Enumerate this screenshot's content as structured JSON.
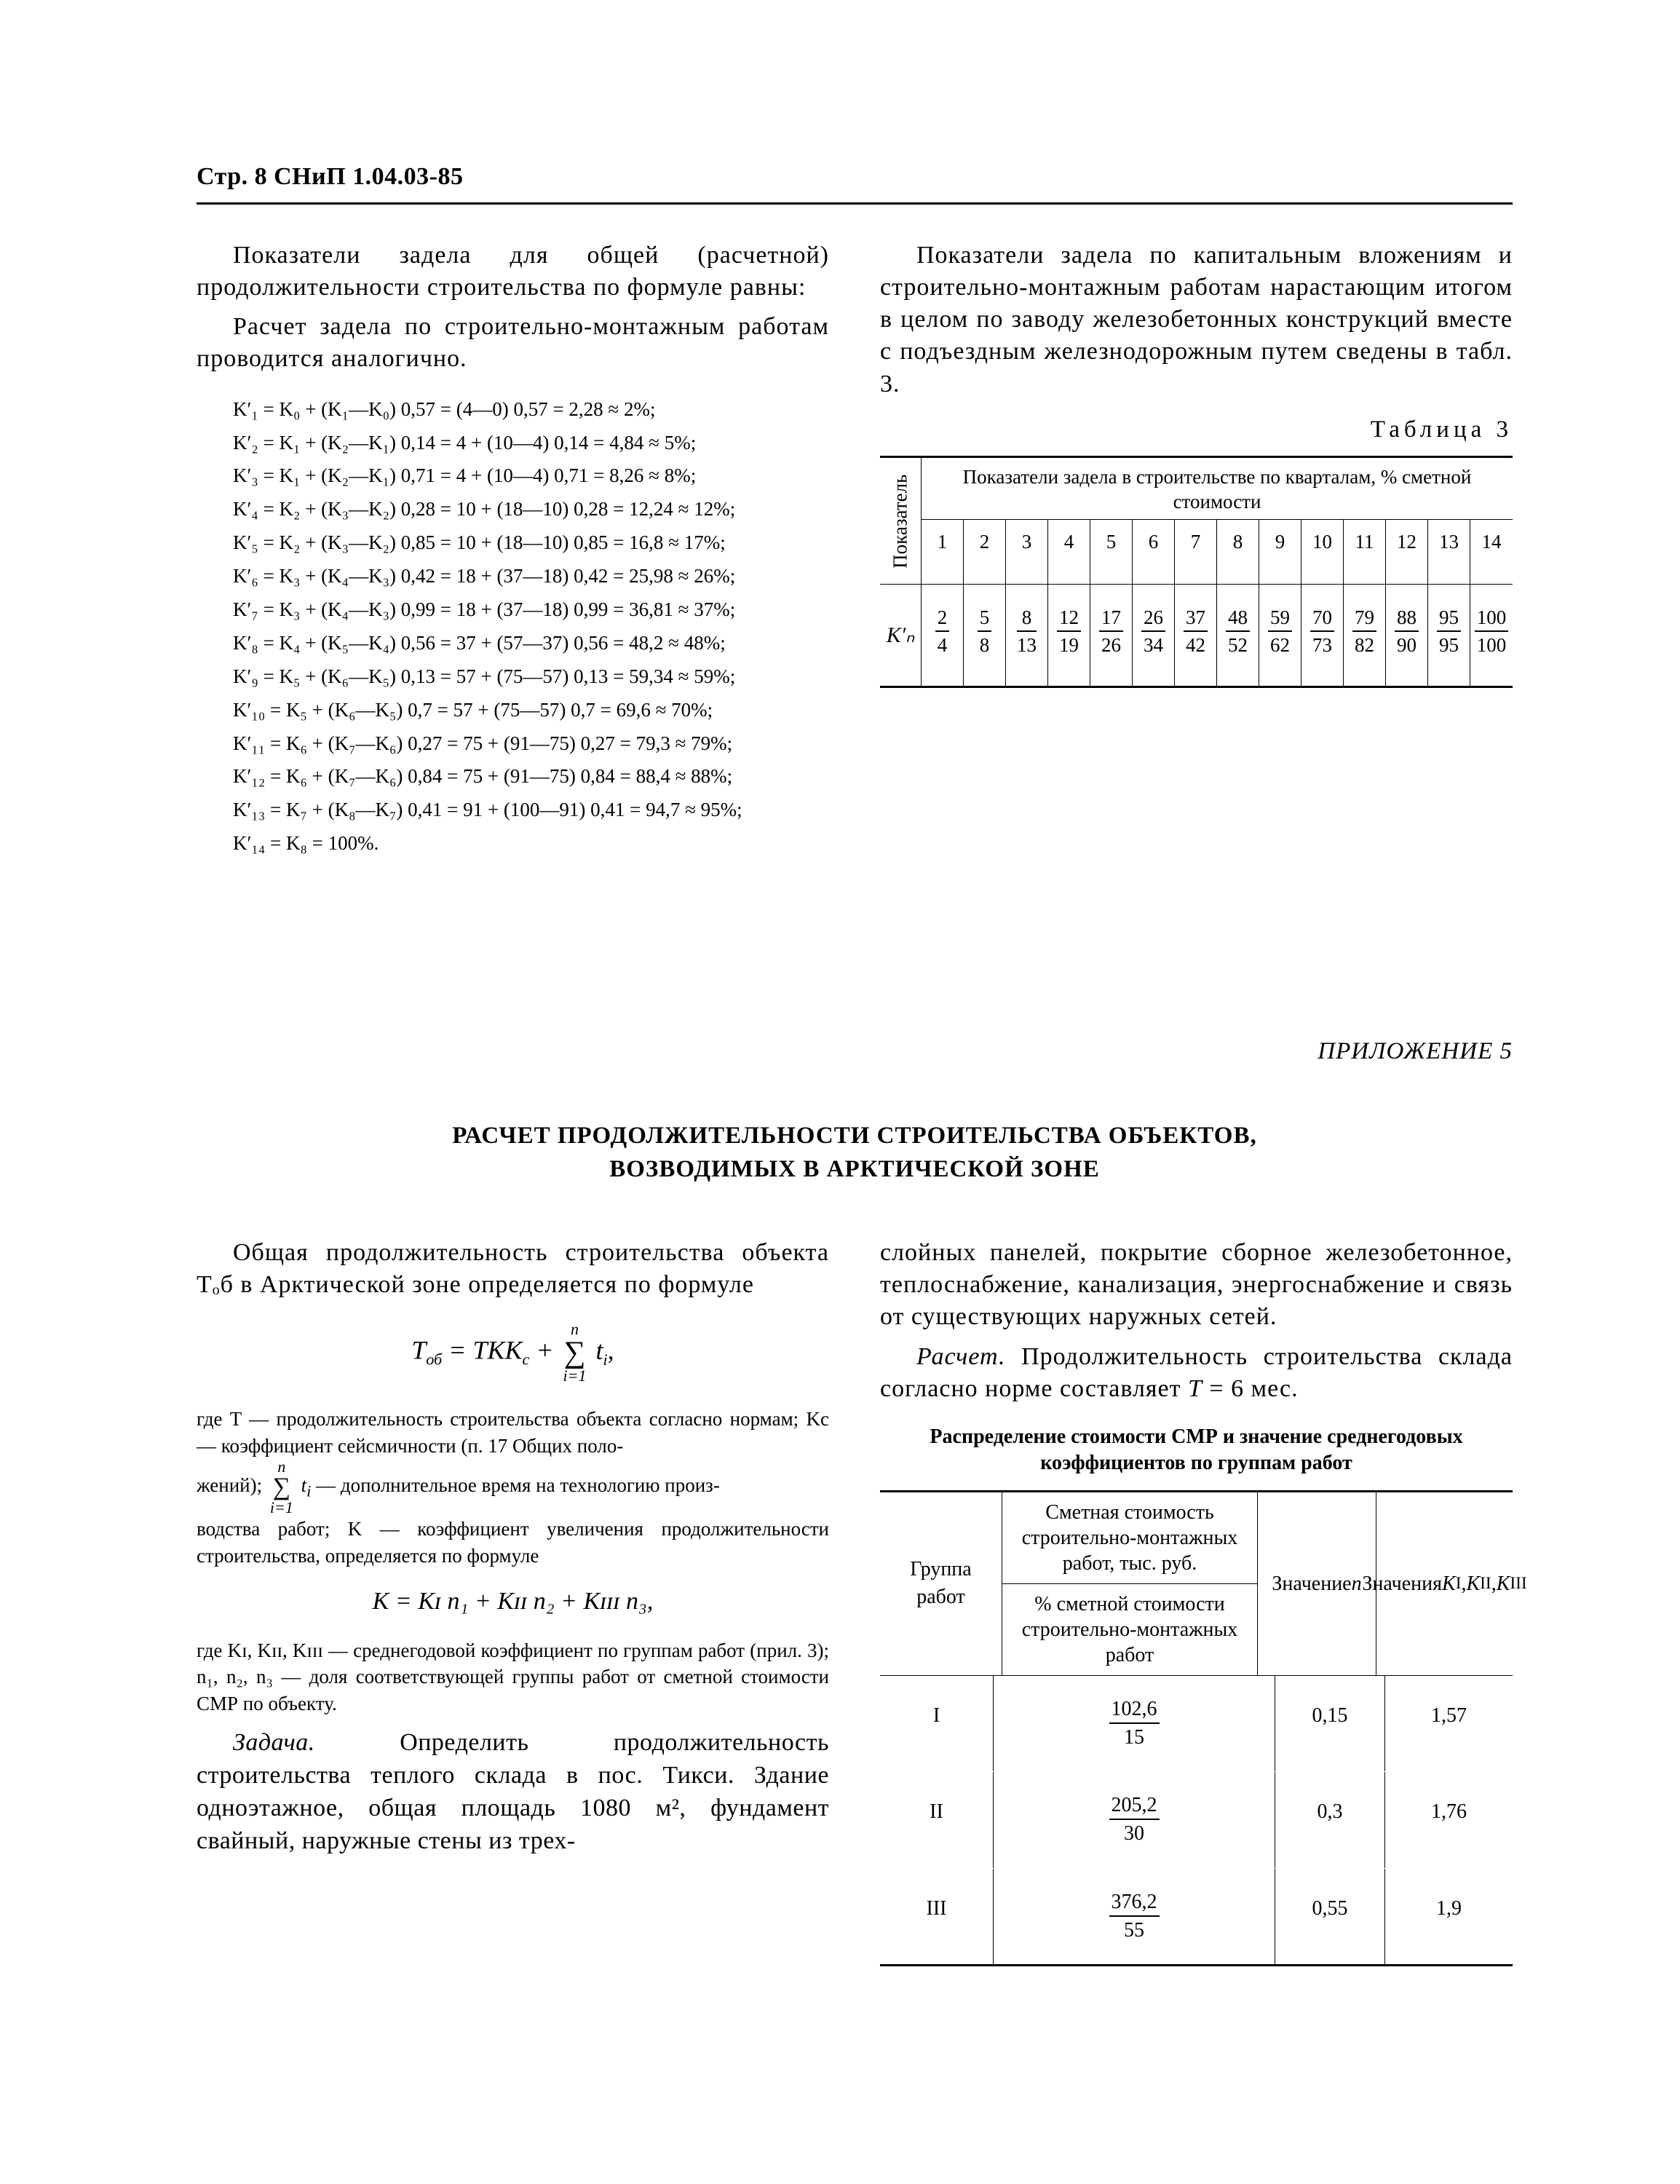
{
  "header": "Стр. 8 СНиП 1.04.03-85",
  "leftCol": {
    "p1": "Показатели задела для общей (расчетной) продолжительности строительства по формуле равны:",
    "p2": "Расчет задела по строительно-монтажным работам проводится аналогично.",
    "calc": [
      "K′₁ = K₀ + (K₁—K₀) 0,57 = (4—0) 0,57 = 2,28 ≈ 2%;",
      "K′₂ = K₁ + (K₂—K₁) 0,14 = 4 + (10—4) 0,14 = 4,84 ≈ 5%;",
      "K′₃ = K₁ + (K₂—K₁) 0,71 = 4 + (10—4) 0,71 = 8,26 ≈ 8%;",
      "K′₄ = K₂ + (K₃—K₂) 0,28 = 10 + (18—10) 0,28 = 12,24 ≈ 12%;",
      "K′₅ = K₂ + (K₃—K₂) 0,85 = 10 + (18—10) 0,85 = 16,8 ≈ 17%;",
      "K′₆ = K₃ + (K₄—K₃) 0,42 = 18 + (37—18) 0,42 = 25,98 ≈ 26%;",
      "K′₇ = K₃ + (K₄—K₃) 0,99 = 18 + (37—18) 0,99 = 36,81 ≈ 37%;",
      "K′₈ = K₄ + (K₅—K₄) 0,56 = 37 + (57—37) 0,56 = 48,2 ≈ 48%;",
      "K′₉ = K₅ + (K₆—K₅) 0,13 = 57 + (75—57) 0,13 = 59,34 ≈ 59%;",
      "K′₁₀ = K₅ + (K₆—K₅) 0,7 = 57 + (75—57) 0,7 = 69,6 ≈ 70%;",
      "K′₁₁ = K₆ + (K₇—K₆) 0,27 = 75 + (91—75) 0,27 = 79,3 ≈ 79%;",
      "K′₁₂ = K₆ + (K₇—K₆) 0,84 = 75 + (91—75) 0,84 = 88,4 ≈ 88%;",
      "K′₁₃ = K₇ + (K₈—K₇) 0,41 = 91 + (100—91) 0,41 = 94,7 ≈ 95%;",
      "K′₁₄ = K₈ = 100%."
    ]
  },
  "rightCol": {
    "p1": "Показатели задела по капитальным вложениям и строительно-монтажным работам нарастающим итогом в целом по заводу железобетонных конструкций вместе с подъездным железнодорожным путем сведены в табл. 3.",
    "tableCaption": "Таблица 3",
    "t3": {
      "pokLabel": "Показатель",
      "headText": "Показатели задела в строительстве по кварталам, % сметной стоимости",
      "cols": [
        "1",
        "2",
        "3",
        "4",
        "5",
        "6",
        "7",
        "8",
        "9",
        "10",
        "11",
        "12",
        "13",
        "14"
      ],
      "rowLabel": "K′ₙ",
      "fracs": [
        {
          "n": "2",
          "d": "4"
        },
        {
          "n": "5",
          "d": "8"
        },
        {
          "n": "8",
          "d": "13"
        },
        {
          "n": "12",
          "d": "19"
        },
        {
          "n": "17",
          "d": "26"
        },
        {
          "n": "26",
          "d": "34"
        },
        {
          "n": "37",
          "d": "42"
        },
        {
          "n": "48",
          "d": "52"
        },
        {
          "n": "59",
          "d": "62"
        },
        {
          "n": "70",
          "d": "73"
        },
        {
          "n": "79",
          "d": "82"
        },
        {
          "n": "88",
          "d": "90"
        },
        {
          "n": "95",
          "d": "95"
        },
        {
          "n": "100",
          "d": "100"
        }
      ]
    }
  },
  "appendix": {
    "label": "ПРИЛОЖЕНИЕ 5",
    "title1": "РАСЧЕТ ПРОДОЛЖИТЕЛЬНОСТИ СТРОИТЕЛЬСТВА ОБЪЕКТОВ,",
    "title2": "ВОЗВОДИМЫХ В АРКТИЧЕСКОЙ ЗОНЕ",
    "left": {
      "p1": "Общая продолжительность строительства объекта Tₒб в Арктической зоне определяется по формуле",
      "note1a": "где T — продолжительность строительства объекта согласно нормам; Kс — коэффициент сейсмичности (п. 17 Общих поло-",
      "note1b": "жений);",
      "note1c": "— дополнительное время на технологию произ-",
      "note1d": "водства работ; K — коэффициент увеличения продолжительности строительства, определяется по формуле",
      "formula2": "K = Kɪ n₁ + Kɪɪ n₂ + Kɪɪɪ n₃,",
      "note2": "где Kɪ, Kɪɪ, Kɪɪɪ — среднегодовой коэффициент по группам работ (прил. 3); n₁, n₂, n₃ — доля соответствующей группы работ от сметной стоимости СМР по объекту.",
      "task": "Задача. Определить продолжительность строительства теплого склада в пос. Тикси. Здание одноэтажное, общая площадь 1080 м², фундамент свайный, наружные стены из трех-"
    },
    "right": {
      "p1": "слойных панелей, покрытие сборное железобетонное, теплоснабжение, канализация, энергоснабжение и связь от существующих наружных сетей.",
      "p2": "Расчет. Продолжительность строительства склада согласно норме составляет T = 6 мес.",
      "tableTitle": "Распределение стоимости СМР и значение среднегодовых коэффициентов по группам работ",
      "t4": {
        "h1": "Группа работ",
        "h2a": "Сметная стоимость строительно-монтажных работ, тыс. руб.",
        "h2b": "% сметной стоимости строительно-монтажных работ",
        "h3": "Значение n",
        "h4": "Значения Kɪ , Kɪɪ , Kɪɪɪ",
        "rows": [
          {
            "g": "I",
            "fn": "102,6",
            "fd": "15",
            "n": "0,15",
            "k": "1,57"
          },
          {
            "g": "II",
            "fn": "205,2",
            "fd": "30",
            "n": "0,3",
            "k": "1,76"
          },
          {
            "g": "III",
            "fn": "376,2",
            "fd": "55",
            "n": "0,55",
            "k": "1,9"
          }
        ]
      }
    }
  }
}
